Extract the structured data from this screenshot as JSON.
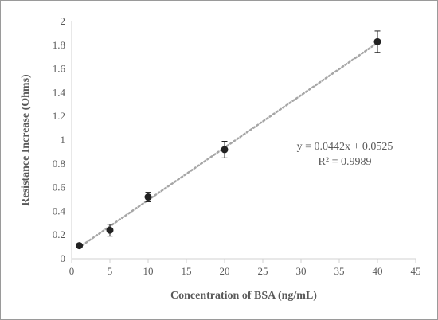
{
  "chart_data": {
    "type": "scatter",
    "xlabel": "Concentration of BSA (ng/mL)",
    "ylabel": "Resistance Increase (Ohms)",
    "xlim": [
      0,
      45
    ],
    "ylim": [
      0,
      2
    ],
    "xticks": [
      "0",
      "5",
      "10",
      "15",
      "20",
      "25",
      "30",
      "35",
      "40",
      "45"
    ],
    "yticks": [
      "0",
      "0.2",
      "0.4",
      "0.6",
      "0.8",
      "1",
      "1.2",
      "1.4",
      "1.6",
      "1.8",
      "2"
    ],
    "grid": false,
    "points": [
      {
        "x": 1,
        "y": 0.11,
        "err": 0.01
      },
      {
        "x": 5,
        "y": 0.24,
        "err": 0.05
      },
      {
        "x": 10,
        "y": 0.52,
        "err": 0.04
      },
      {
        "x": 20,
        "y": 0.92,
        "err": 0.07
      },
      {
        "x": 40,
        "y": 1.83,
        "err": 0.09
      }
    ],
    "trendline": {
      "slope": 0.0442,
      "intercept": 0.0525,
      "x_range": [
        1,
        40
      ],
      "style": "dotted"
    },
    "annotations": {
      "equation": "y = 0.0442x + 0.0525",
      "r_squared": "R² = 0.9989"
    },
    "colors": {
      "axis": "#d0d0d0",
      "marker": "#222222",
      "trendline": "#a6a6a6",
      "text": "#595959"
    }
  }
}
